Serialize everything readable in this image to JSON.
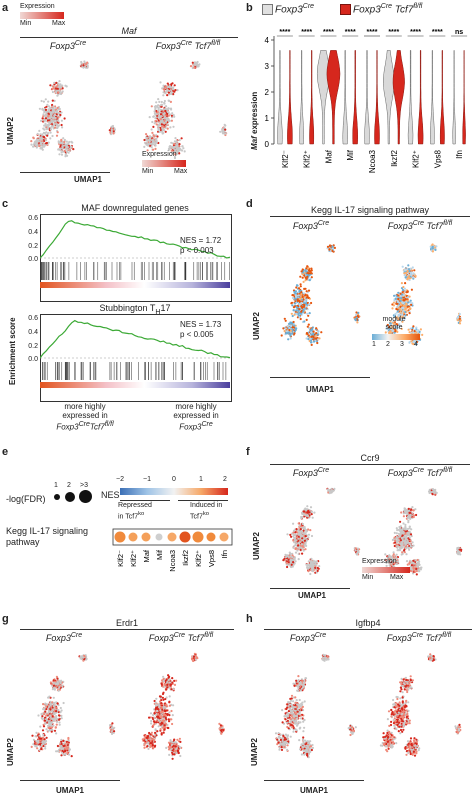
{
  "panels": {
    "a": {
      "letter": "a",
      "legend_title": "Expression",
      "legend_min": "Min",
      "legend_max": "Max",
      "gene": "Maf",
      "group1": "Foxp3",
      "group1_sup": "Cre",
      "group2": "Foxp3",
      "group2_sup": "Cre",
      "group2_gene": "Tcf7",
      "group2_gene_sup": "fl/fl",
      "xlabel": "UMAP1",
      "ylabel": "UMAP2",
      "legend2_title": "Expression",
      "legend2_min": "Min",
      "legend2_max": "Max"
    },
    "b": {
      "letter": "b",
      "legend1": "Foxp3",
      "legend1_sup": "Cre",
      "legend2": "Foxp3",
      "legend2_sup": "Cre",
      "legend2_gene": "Tcf7",
      "legend2_gene_sup": "fl/fl",
      "ylabel_gene": "Maf",
      "ylabel_rest": " expression",
      "yticks": [
        "4",
        "3",
        "2",
        "1",
        "0"
      ],
      "categories": [
        "Klf2⁻",
        "Klf2⁺",
        "Maf",
        "Mif",
        "Ncoa3",
        "Ikzf2",
        "Klf2⁺",
        "Vps8",
        "Ifn"
      ],
      "significance": [
        "****",
        "****",
        "****",
        "****",
        "****",
        "****",
        "****",
        "****",
        "ns"
      ],
      "colors": {
        "ctrl": "#d9d9d9",
        "ko": "#d6271d"
      }
    },
    "c": {
      "letter": "c",
      "plot1_title": "MAF downregulated genes",
      "plot1_nes": "NES = 1.72",
      "plot1_p": "p < 0.003",
      "plot2_title_main": "Stubbington T",
      "plot2_title_sub": "H",
      "plot2_title_end": "17",
      "plot2_nes": "NES = 1.73",
      "plot2_p": "p < 0.005",
      "ylabel": "Enrichment score",
      "yticks1": [
        "0.6",
        "0.4",
        "0.2",
        "0.0"
      ],
      "yticks2": [
        "0.6",
        "0.4",
        "0.2",
        "0.0"
      ],
      "left_note1": "more highly",
      "left_note2": "expressed in",
      "left_note3_a": "Foxp3",
      "left_note3_a_sup": "Cre",
      "left_note3_b": "Tcf7",
      "left_note3_b_sup": "fl/fl",
      "right_note1": "more highly",
      "right_note2": "expressed in",
      "right_note3": "Foxp3",
      "right_note3_sup": "Cre"
    },
    "d": {
      "letter": "d",
      "title": "Kegg IL-17 signaling pathway",
      "group1": "Foxp3",
      "group1_sup": "Cre",
      "group2": "Foxp3",
      "group2_sup": "Cre",
      "group2_gene": "Tcf7",
      "group2_gene_sup": "fl/fl",
      "legend_title1": "module",
      "legend_title2": "score",
      "legend_ticks": [
        "1",
        "2",
        "3",
        "4"
      ],
      "xlabel": "UMAP1",
      "ylabel": "UMAP2"
    },
    "e": {
      "letter": "e",
      "size_title": "-log(FDR)",
      "size_ticks": [
        "1",
        "2",
        ">3"
      ],
      "nes_title": "NES",
      "nes_ticks": [
        "−2",
        "−1",
        "0",
        "1",
        "2"
      ],
      "repressed_line1": "Repressed",
      "repressed_line2": "in Tcf7",
      "repressed_sup": "ko",
      "induced_line1": "Induced in",
      "induced_line2": "Tcf7",
      "induced_sup": "ko",
      "row_label1": "Kegg IL-17 signaling",
      "row_label2": "pathway",
      "columns": [
        "Klf2⁻",
        "Klf2⁺",
        "Maf",
        "Mif",
        "Ncoa3",
        "Ikzf2",
        "Klf2⁺",
        "Vps8",
        "Ifn"
      ],
      "dot_colors": [
        "#f08a3c",
        "#f4a05a",
        "#f4a05a",
        "#cfcfcf",
        "#f6a868",
        "#e2541f",
        "#f08a3c",
        "#f08a3c",
        "#f6a868"
      ],
      "dot_sizes": [
        3,
        2,
        2,
        1,
        2,
        3,
        3,
        2,
        2
      ]
    },
    "f": {
      "letter": "f",
      "gene": "Ccr9",
      "group1": "Foxp3",
      "group1_sup": "Cre",
      "group2": "Foxp3",
      "group2_sup": "Cre",
      "group2_gene": "Tcf7",
      "group2_gene_sup": "fl/fl",
      "legend_title": "Expression",
      "legend_min": "Min",
      "legend_max": "Max",
      "xlabel": "UMAP1",
      "ylabel": "UMAP2"
    },
    "g": {
      "letter": "g",
      "gene": "Erdr1",
      "group1": "Foxp3",
      "group1_sup": "Cre",
      "group2": "Foxp3",
      "group2_sup": "Cre",
      "group2_gene": "Tcf7",
      "group2_gene_sup": "fl/fl",
      "xlabel": "UMAP1",
      "ylabel": "UMAP2"
    },
    "h": {
      "letter": "h",
      "gene": "Igfbp4",
      "group1": "Foxp3",
      "group1_sup": "Cre",
      "group2": "Foxp3",
      "group2_sup": "Cre",
      "group2_gene": "Tcf7",
      "group2_gene_sup": "fl/fl",
      "xlabel": "UMAP1",
      "ylabel": "UMAP2"
    }
  }
}
